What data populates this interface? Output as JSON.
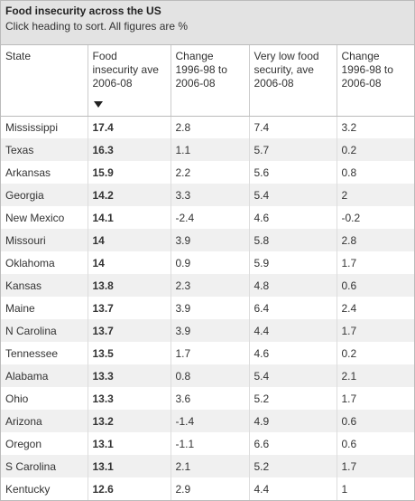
{
  "header": {
    "title": "Food insecurity across the US",
    "subtitle": "Click heading to sort. All figures are %"
  },
  "table": {
    "columns": [
      "State",
      "Food insecurity ave 2006-08",
      "Change 1996-98 to 2006-08",
      "Very low food security, ave 2006-08",
      "Change 1996-98 to 2006-08"
    ],
    "rows": [
      [
        "Mississippi",
        17.4,
        2.8,
        7.4,
        3.2
      ],
      [
        "Texas",
        16.3,
        1.1,
        5.7,
        0.2
      ],
      [
        "Arkansas",
        15.9,
        2.2,
        5.6,
        0.8
      ],
      [
        "Georgia",
        14.2,
        3.3,
        5.4,
        2
      ],
      [
        "New Mexico",
        14.1,
        -2.4,
        4.6,
        -0.2
      ],
      [
        "Missouri",
        14,
        3.9,
        5.8,
        2.8
      ],
      [
        "Oklahoma",
        14,
        0.9,
        5.9,
        1.7
      ],
      [
        "Kansas",
        13.8,
        2.3,
        4.8,
        0.6
      ],
      [
        "Maine",
        13.7,
        3.9,
        6.4,
        2.4
      ],
      [
        "N Carolina",
        13.7,
        3.9,
        4.4,
        1.7
      ],
      [
        "Tennessee",
        13.5,
        1.7,
        4.6,
        0.2
      ],
      [
        "Alabama",
        13.3,
        0.8,
        5.4,
        2.1
      ],
      [
        "Ohio",
        13.3,
        3.6,
        5.2,
        1.7
      ],
      [
        "Arizona",
        13.2,
        -1.4,
        4.9,
        0.6
      ],
      [
        "Oregon",
        13.1,
        -1.1,
        6.6,
        0.6
      ],
      [
        "S Carolina",
        13.1,
        2.1,
        5.2,
        1.7
      ],
      [
        "Kentucky",
        12.6,
        2.9,
        4.4,
        1
      ]
    ]
  }
}
